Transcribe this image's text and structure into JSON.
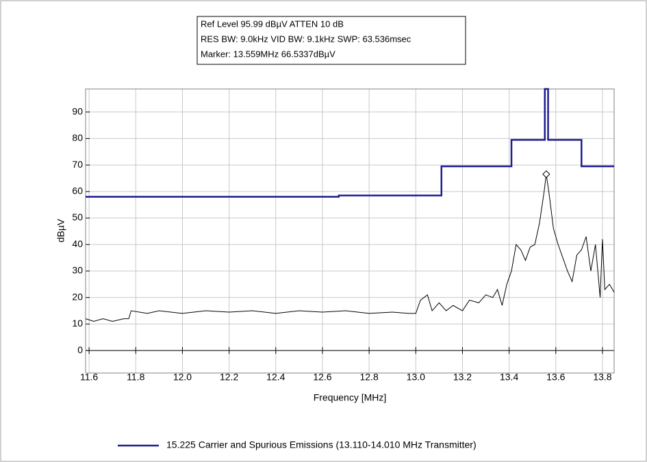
{
  "chart_data": {
    "type": "line",
    "header": [
      "Ref Level 95.99 dBµV    ATTEN 10 dB",
      "RES BW: 9.0kHz  VID BW: 9.1kHz  SWP: 63.536msec",
      "Marker: 13.559MHz  66.5337dBµV"
    ],
    "xlabel": "Frequency [MHz]",
    "ylabel": "dBµV",
    "xlim": [
      11.585,
      13.85
    ],
    "ylim": [
      -8.5,
      98.7
    ],
    "xticks": [
      11.6,
      11.8,
      {
        "value": 12,
        "label": "12.0"
      },
      12.2,
      12.4,
      12.6,
      12.8,
      {
        "value": 13,
        "label": "13.0"
      },
      13.2,
      13.4,
      13.6,
      13.8
    ],
    "yticks": [
      0,
      10,
      20,
      30,
      40,
      50,
      60,
      70,
      80,
      90
    ],
    "grid": true,
    "series": [
      {
        "name": "15.225 Carrier and Spurious Emissions (13.110-14.010 MHz Transmitter)",
        "color": "#1c1c90",
        "width": 2.5,
        "x": [
          11.585,
          12.67,
          12.67,
          13.11,
          13.11,
          13.41,
          13.41,
          13.553,
          13.553,
          13.567,
          13.567,
          13.71,
          13.71,
          13.85
        ],
        "values": [
          58,
          58,
          58.5,
          58.5,
          69.5,
          69.5,
          79.5,
          79.5,
          98.7,
          98.7,
          79.5,
          79.5,
          69.5,
          69.5
        ]
      },
      {
        "color": "#000000",
        "width": 1,
        "x": [
          11.585,
          11.62,
          11.66,
          11.7,
          11.75,
          11.77,
          11.78,
          11.85,
          11.9,
          12.0,
          12.1,
          12.2,
          12.3,
          12.4,
          12.5,
          12.6,
          12.7,
          12.8,
          12.9,
          12.97,
          13.0,
          13.02,
          13.05,
          13.07,
          13.1,
          13.13,
          13.16,
          13.2,
          13.23,
          13.27,
          13.3,
          13.33,
          13.35,
          13.37,
          13.39,
          13.41,
          13.43,
          13.45,
          13.47,
          13.49,
          13.51,
          13.53,
          13.55,
          13.559,
          13.57,
          13.59,
          13.61,
          13.63,
          13.65,
          13.67,
          13.69,
          13.71,
          13.73,
          13.75,
          13.77,
          13.79,
          13.8,
          13.81,
          13.83,
          13.85
        ],
        "values": [
          12,
          11,
          12,
          11,
          12,
          12,
          15,
          14,
          15,
          14,
          15,
          14.5,
          15,
          14,
          15,
          14.5,
          15,
          14,
          14.5,
          14,
          14,
          19,
          21,
          15,
          18,
          15,
          17,
          15,
          19,
          18,
          21,
          20,
          23,
          17,
          25,
          30,
          40,
          38,
          34,
          39,
          40,
          48,
          60,
          66.5,
          60,
          46,
          40,
          35,
          30,
          26,
          36,
          38,
          43,
          30,
          40,
          20,
          42,
          23,
          25,
          22
        ]
      }
    ],
    "marker": {
      "x": 13.559,
      "y": 66.5337
    }
  }
}
